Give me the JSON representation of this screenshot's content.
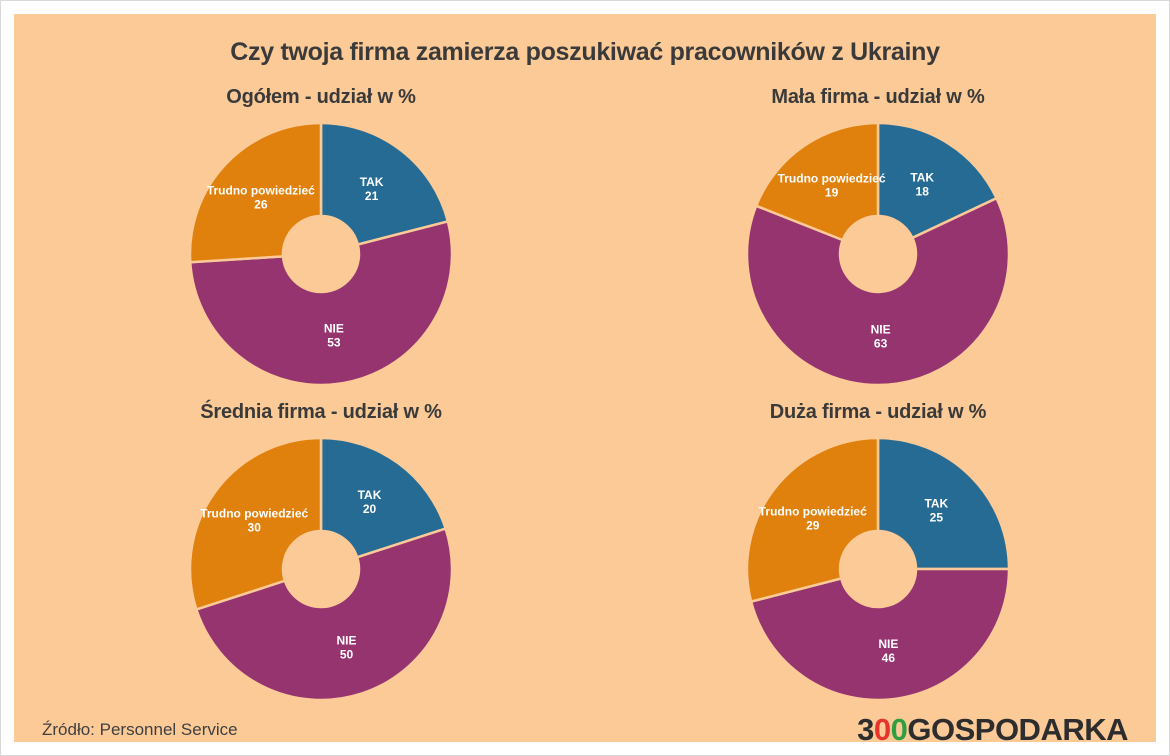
{
  "header": {
    "title": "Czy twoja firma zamierza poszukiwać pracowników z Ukrainy"
  },
  "colors": {
    "background": "#fbca97",
    "frame": "#ffffff",
    "border": "#d8d8d8",
    "title_text": "#3a3a3a",
    "label_text": "#ffffff",
    "slices": {
      "TAK": "#266b93",
      "NIE": "#963470",
      "Trudno powiedzieć": "#e0810e"
    }
  },
  "chart_data": [
    {
      "type": "pie",
      "subtype": "donut",
      "title": "Ogółem - udział w %",
      "categories": [
        "TAK",
        "NIE",
        "Trudno powiedzieć"
      ],
      "values": [
        21,
        53,
        26
      ],
      "labels_position": "inside",
      "legend": "none",
      "start_angle_deg": 0,
      "direction": "clockwise"
    },
    {
      "type": "pie",
      "subtype": "donut",
      "title": "Mała firma - udział w %",
      "categories": [
        "TAK",
        "NIE",
        "Trudno powiedzieć"
      ],
      "values": [
        18,
        63,
        19
      ],
      "labels_position": "inside",
      "legend": "none",
      "start_angle_deg": 0,
      "direction": "clockwise"
    },
    {
      "type": "pie",
      "subtype": "donut",
      "title": "Średnia firma - udział w %",
      "categories": [
        "TAK",
        "NIE",
        "Trudno powiedzieć"
      ],
      "values": [
        20,
        50,
        30
      ],
      "labels_position": "inside",
      "legend": "none",
      "start_angle_deg": 0,
      "direction": "clockwise"
    },
    {
      "type": "pie",
      "subtype": "donut",
      "title": "Duża firma - udział w %",
      "categories": [
        "TAK",
        "NIE",
        "Trudno powiedzieć"
      ],
      "values": [
        25,
        46,
        29
      ],
      "labels_position": "inside",
      "legend": "none",
      "start_angle_deg": 0,
      "direction": "clockwise"
    }
  ],
  "footer": {
    "source": "Źródło: Personnel Service"
  },
  "logo": {
    "parts": [
      {
        "text": "3",
        "color": "#2d2d2d"
      },
      {
        "text": "0",
        "color": "#e5342b"
      },
      {
        "text": "0",
        "color": "#2f9e41"
      },
      {
        "text": "GOSPODARKA",
        "color": "#2d2d2d"
      }
    ]
  }
}
